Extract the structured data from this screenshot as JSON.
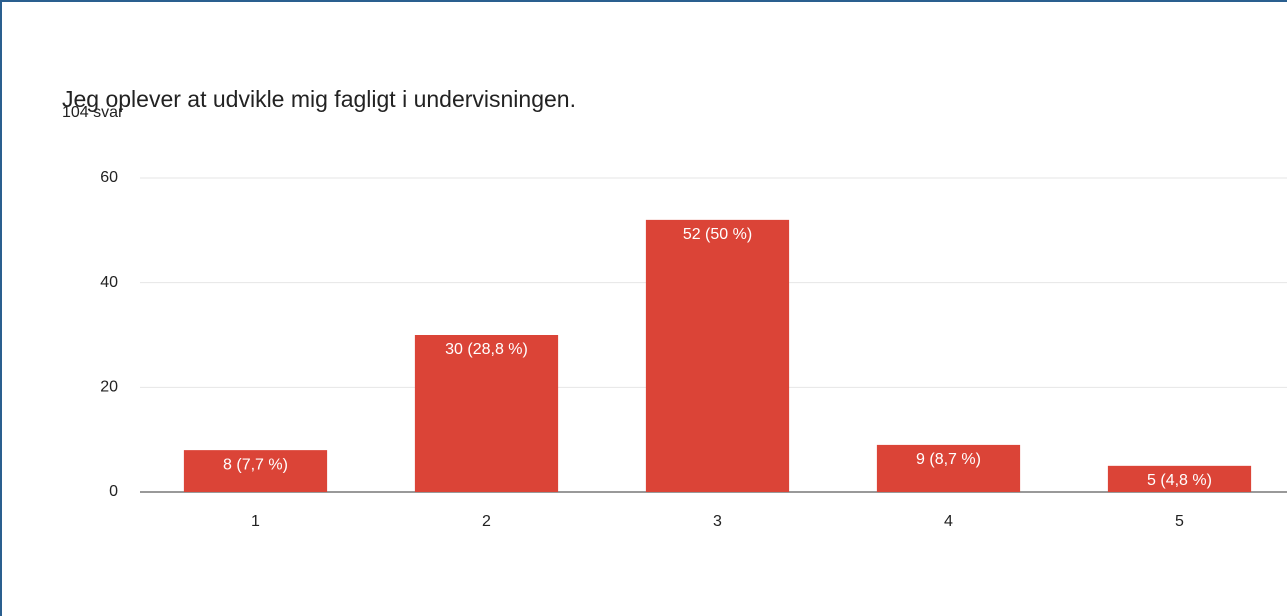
{
  "chart_data": {
    "type": "bar",
    "title": "Jeg oplever at udvikle mig fagligt i undervisningen.",
    "subtitle": "104 svar",
    "categories": [
      "1",
      "2",
      "3",
      "4",
      "5"
    ],
    "values": [
      8,
      30,
      52,
      9,
      5
    ],
    "value_labels": [
      "8 (7,7 %)",
      "30 (28,8 %)",
      "52 (50 %)",
      "9 (8,7 %)",
      "5 (4,8 %)"
    ],
    "color": "#db4437",
    "ylim": [
      0,
      60
    ],
    "yticks": [
      0,
      20,
      40,
      60
    ],
    "grid": true
  }
}
